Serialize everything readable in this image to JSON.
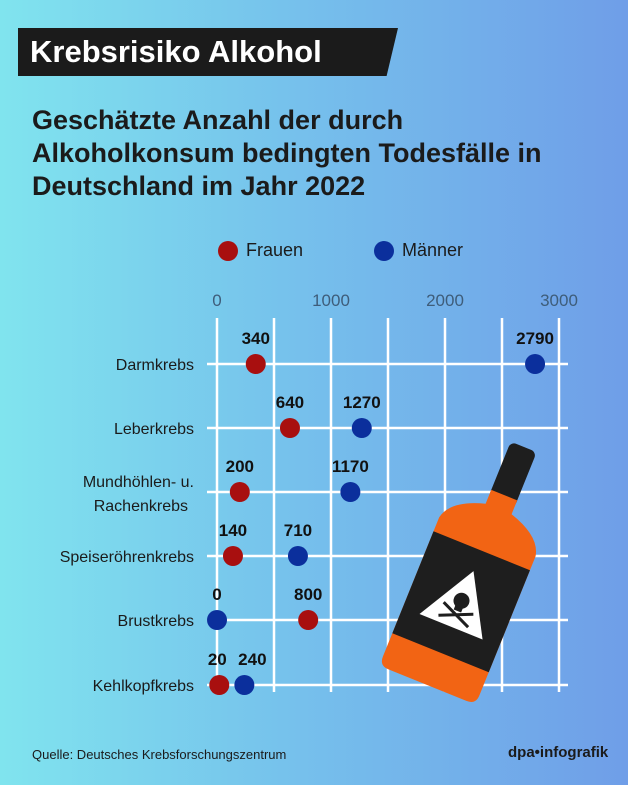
{
  "header": {
    "kicker": "Krebsrisiko Alkohol",
    "title": "Geschätzte Anzahl der durch Alkoholkonsum bedingten Todesfälle in Deutschland im Jahr 2022"
  },
  "footer": {
    "source": "Quelle: Deutsches Krebsforschungszentrum",
    "logo": "dpa•infografik"
  },
  "colors": {
    "frauen": "#a80f0f",
    "maenner": "#0b2f9c"
  },
  "chart_data": {
    "type": "dot",
    "categories": [
      "Darmkrebs",
      "Leberkrebs",
      "Mundhöhlen- u. Rachenkrebs",
      "Speiseröhrenkrebs",
      "Brustkrebs",
      "Kehlkopfkrebs"
    ],
    "category_lines": [
      [
        "Darmkrebs"
      ],
      [
        "Leberkrebs"
      ],
      [
        "Mundhöhlen- u.",
        "Rachenkrebs"
      ],
      [
        "Speiseröhrenkrebs"
      ],
      [
        "Brustkrebs"
      ],
      [
        "Kehlkopfkrebs"
      ]
    ],
    "series": [
      {
        "name": "Frauen",
        "values": [
          340,
          640,
          200,
          140,
          800,
          20
        ]
      },
      {
        "name": "Männer",
        "values": [
          2790,
          1270,
          1170,
          710,
          0,
          240
        ]
      }
    ],
    "xlim": [
      0,
      3000
    ],
    "xticks": [
      0,
      1000,
      2000,
      3000
    ],
    "grid": true,
    "legend": "top"
  }
}
